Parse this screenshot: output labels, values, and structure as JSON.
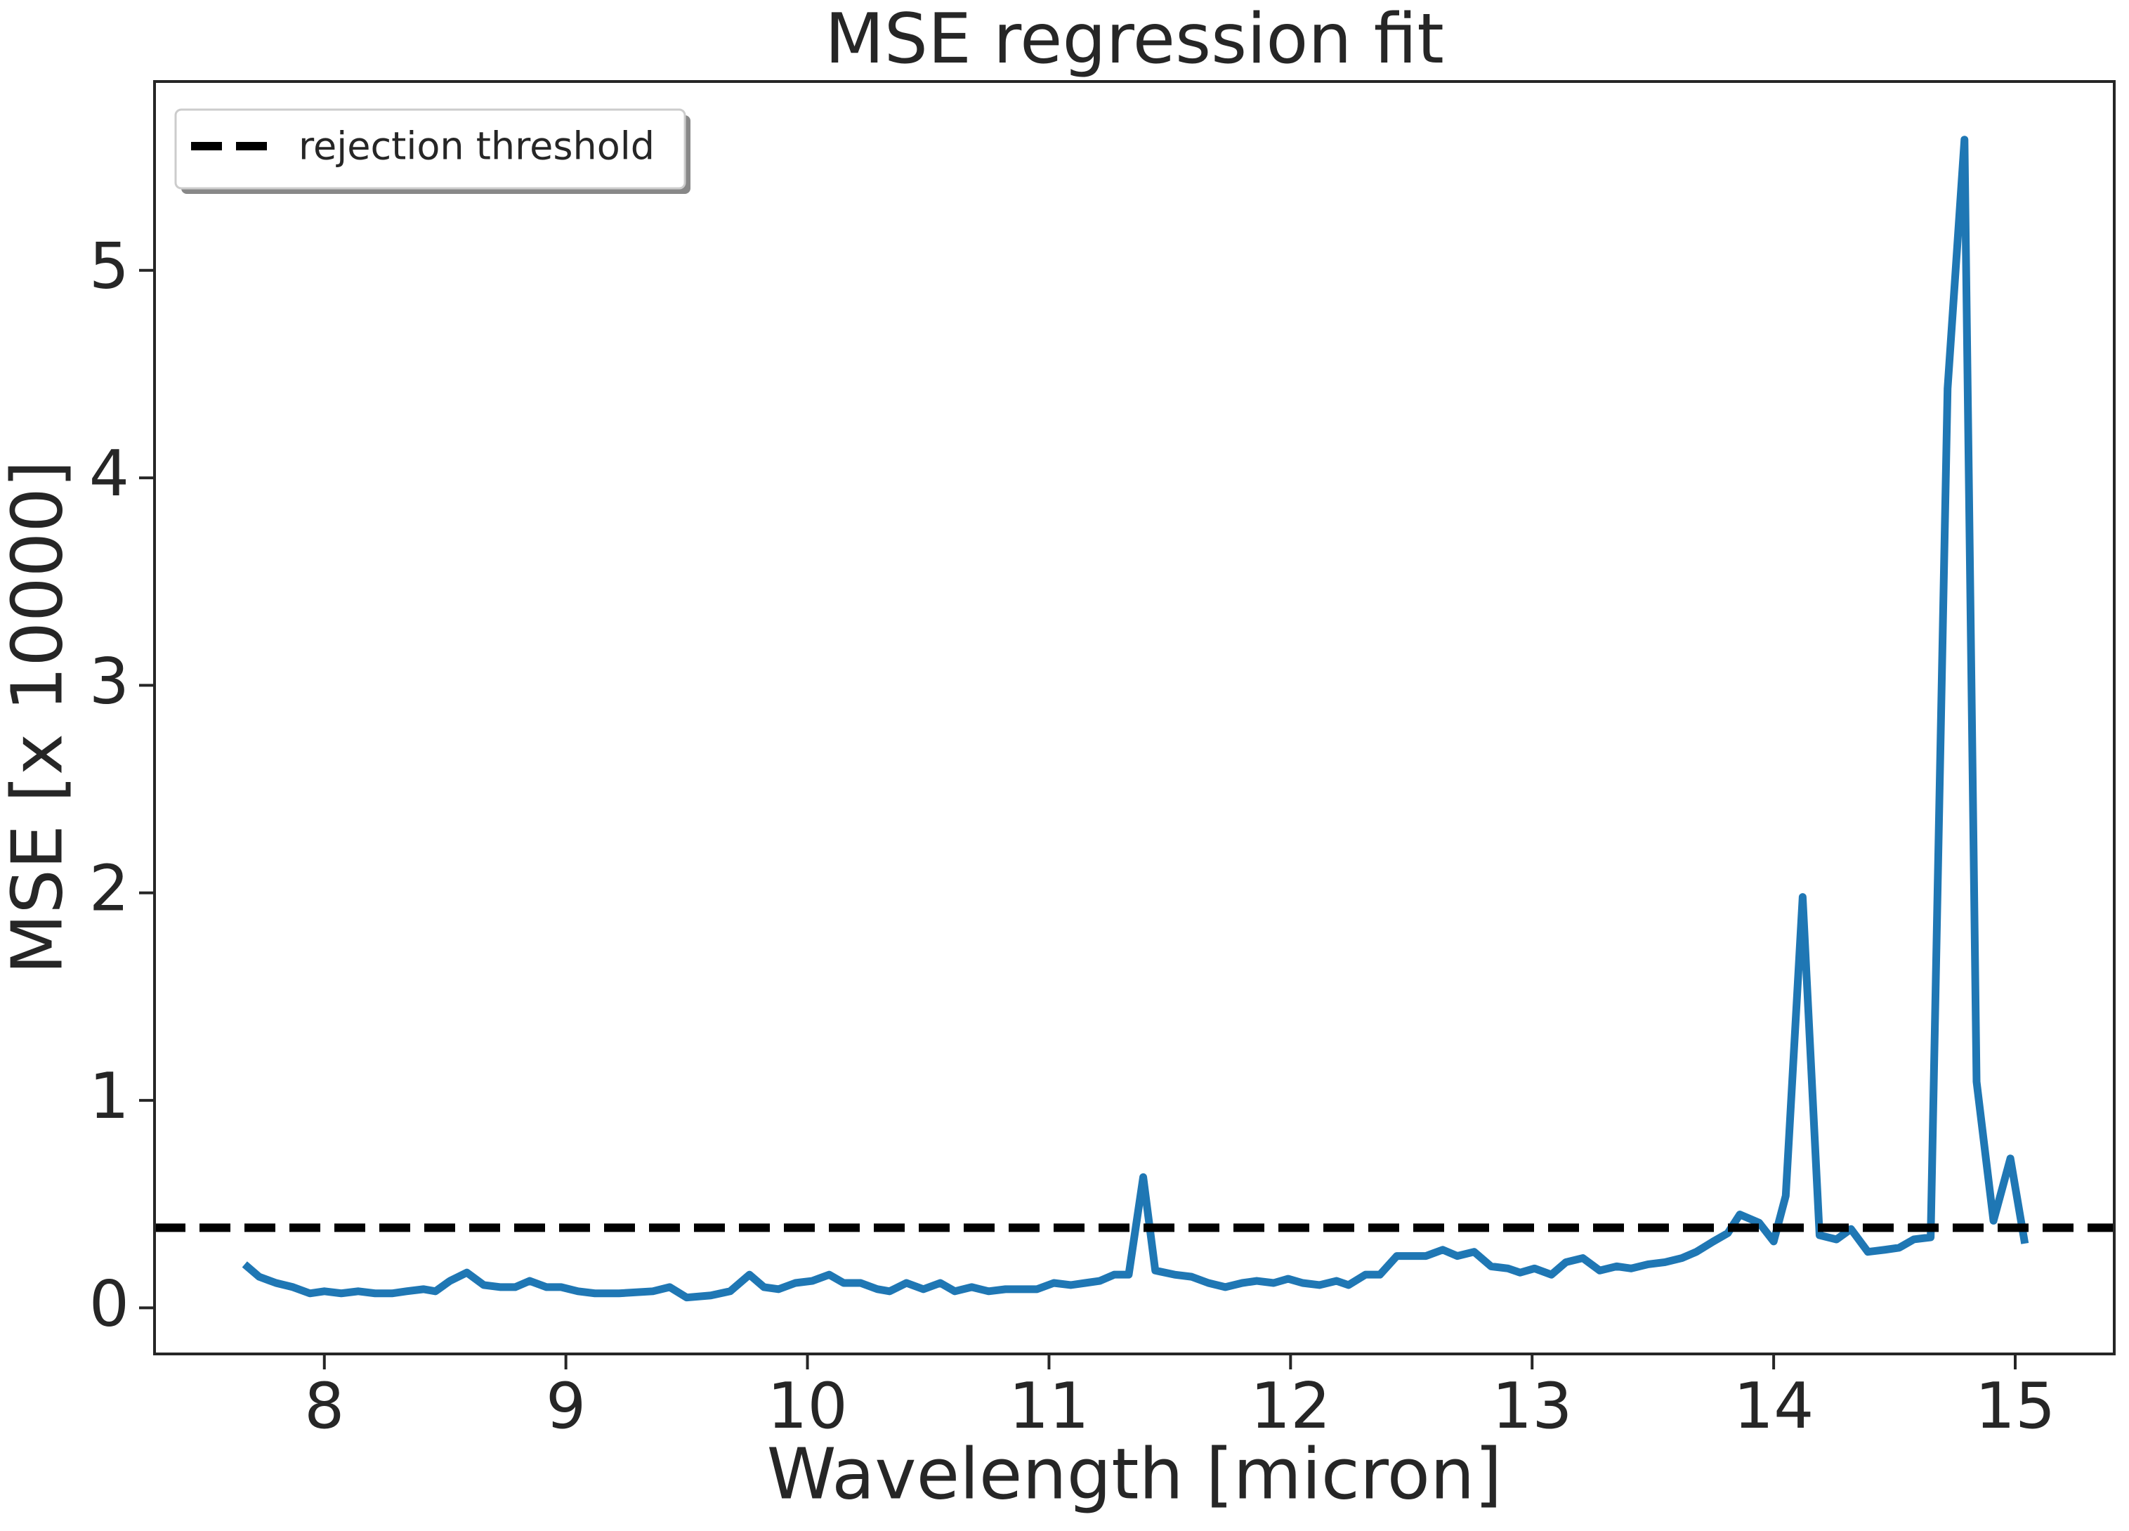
{
  "chart_data": {
    "type": "line",
    "title": "MSE regression fit",
    "x_label": "Wavelength [micron]",
    "y_label": "MSE [x 10000]",
    "x": [
      7.67,
      7.73,
      7.8,
      7.87,
      7.94,
      8.0,
      8.07,
      8.14,
      8.21,
      8.28,
      8.34,
      8.41,
      8.46,
      8.52,
      8.59,
      8.66,
      8.73,
      8.79,
      8.85,
      8.92,
      8.98,
      9.05,
      9.12,
      9.22,
      9.36,
      9.43,
      9.5,
      9.6,
      9.68,
      9.76,
      9.82,
      9.88,
      9.95,
      10.02,
      10.09,
      10.15,
      10.22,
      10.29,
      10.34,
      10.41,
      10.48,
      10.55,
      10.61,
      10.68,
      10.75,
      10.82,
      10.88,
      10.95,
      11.02,
      11.09,
      11.15,
      11.21,
      11.27,
      11.33,
      11.39,
      11.44,
      11.52,
      11.59,
      11.66,
      11.73,
      11.8,
      11.86,
      11.93,
      11.99,
      12.05,
      12.12,
      12.19,
      12.24,
      12.31,
      12.37,
      12.44,
      12.5,
      12.56,
      12.63,
      12.69,
      12.76,
      12.83,
      12.9,
      12.95,
      13.01,
      13.08,
      13.14,
      13.21,
      13.28,
      13.35,
      13.41,
      13.48,
      13.55,
      13.62,
      13.68,
      13.75,
      13.81,
      13.86,
      13.94,
      14.0,
      14.05,
      14.12,
      14.19,
      14.26,
      14.32,
      14.39,
      14.46,
      14.52,
      14.58,
      14.65,
      14.72,
      14.79,
      14.84,
      14.91,
      14.98,
      15.04
    ],
    "series": [
      {
        "color": "#1f77b4",
        "values": [
          0.21,
          0.15,
          0.12,
          0.1,
          0.07,
          0.08,
          0.07,
          0.08,
          0.07,
          0.07,
          0.08,
          0.09,
          0.08,
          0.13,
          0.17,
          0.11,
          0.1,
          0.1,
          0.13,
          0.1,
          0.1,
          0.08,
          0.07,
          0.07,
          0.08,
          0.1,
          0.05,
          0.06,
          0.08,
          0.16,
          0.1,
          0.09,
          0.12,
          0.13,
          0.16,
          0.12,
          0.12,
          0.09,
          0.08,
          0.12,
          0.09,
          0.12,
          0.08,
          0.1,
          0.08,
          0.09,
          0.09,
          0.09,
          0.12,
          0.11,
          0.12,
          0.13,
          0.16,
          0.16,
          0.63,
          0.18,
          0.16,
          0.15,
          0.12,
          0.1,
          0.12,
          0.13,
          0.12,
          0.14,
          0.12,
          0.11,
          0.13,
          0.11,
          0.16,
          0.16,
          0.25,
          0.25,
          0.25,
          0.28,
          0.25,
          0.27,
          0.2,
          0.19,
          0.17,
          0.19,
          0.16,
          0.22,
          0.24,
          0.18,
          0.2,
          0.19,
          0.21,
          0.22,
          0.24,
          0.27,
          0.32,
          0.36,
          0.45,
          0.41,
          0.32,
          0.54,
          1.98,
          0.35,
          0.33,
          0.38,
          0.27,
          0.28,
          0.29,
          0.33,
          0.34,
          4.43,
          5.63,
          1.09,
          0.42,
          0.72,
          0.31
        ]
      }
    ],
    "threshold": {
      "name": "rejection threshold",
      "value": 0.386,
      "color": "#000000"
    },
    "xlim": [
      7.297,
      15.41
    ],
    "ylim": [
      -0.222,
      5.91
    ],
    "xticks": [
      8,
      9,
      10,
      11,
      12,
      13,
      14,
      15
    ],
    "yticks": [
      0,
      1,
      2,
      3,
      4,
      5
    ],
    "legend": "upper left"
  }
}
